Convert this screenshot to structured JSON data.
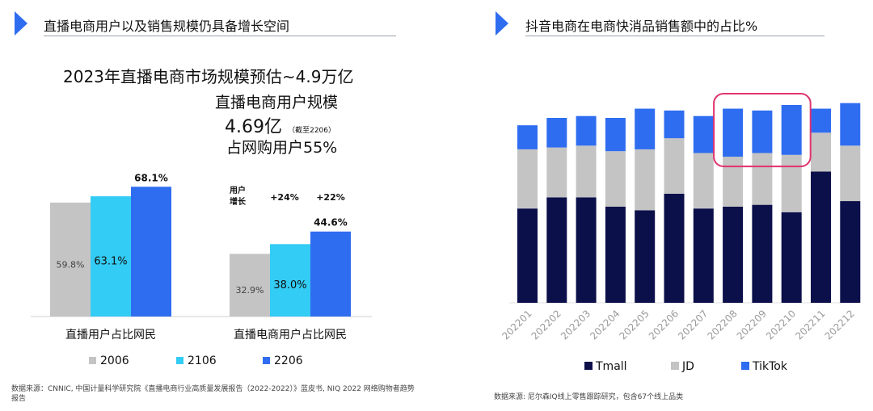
{
  "colors": {
    "accent": "#2f6df0",
    "s2006": "#c4c4c4",
    "s2106": "#33ccf5",
    "s2206": "#2f6df0",
    "tmall": "#0b0f4a",
    "jd": "#c4c4c4",
    "tiktok": "#2f6df0",
    "highlight": "#e0336e"
  },
  "left_panel": {
    "title": "直播电商用户以及销售规模仍具备增长空间",
    "headline": "2023年直播电商市场规模预估~4.9万亿",
    "users_label": "直播电商用户规模",
    "users_value": "4.69亿",
    "users_note": "（截至2206）",
    "online_share": "占网购用户55%",
    "source": "数据来源：CNNIC, 中国计量科学研究院《直播电商行业高质量发展报告（2022-2022）》蓝皮书, NIQ 2022 网络购物者趋势报告"
  },
  "right_panel": {
    "title": "抖音电商在电商快消品销售额中的占比%",
    "source": "数据来源: 尼尔森IQ线上零售跟踪研究，包含67个线上品类"
  },
  "chart_data": [
    {
      "type": "bar",
      "title": "",
      "categories": [
        "直播用户占比网民",
        "直播电商用户占比网民"
      ],
      "series": [
        {
          "name": "2006",
          "values": [
            59.8,
            32.9
          ],
          "labels": [
            "59.8%",
            "32.9%"
          ]
        },
        {
          "name": "2106",
          "values": [
            63.1,
            38.0
          ],
          "labels": [
            "63.1%",
            "38.0%"
          ]
        },
        {
          "name": "2206",
          "values": [
            68.1,
            44.6
          ],
          "labels": [
            "68.1%",
            "44.6%"
          ]
        }
      ],
      "annotations": {
        "growth_label": "用户\n增长",
        "growth_values": [
          "+24%",
          "+22%"
        ]
      },
      "ylim": [
        0,
        100
      ],
      "legend": "bottom"
    },
    {
      "type": "bar",
      "stacked": true,
      "title": "抖音电商在电商快消品销售额中的占比%",
      "categories": [
        "202201",
        "202202",
        "202203",
        "202204",
        "202205",
        "202206",
        "202207",
        "202208",
        "202209",
        "202210",
        "202211",
        "202212"
      ],
      "series": [
        {
          "name": "Tmall",
          "values": [
            51,
            57,
            57,
            52,
            50,
            59,
            51,
            52,
            53,
            49,
            71,
            55
          ]
        },
        {
          "name": "JD",
          "values": [
            32,
            27,
            28,
            30,
            33,
            30,
            30,
            27,
            28,
            31,
            21,
            30
          ]
        },
        {
          "name": "TikTok",
          "values": [
            13,
            16,
            16,
            18,
            22,
            15,
            20,
            26,
            23,
            27,
            13,
            23
          ]
        }
      ],
      "highlight_categories": [
        "202208",
        "202209",
        "202210"
      ],
      "ylim": [
        0,
        110
      ],
      "legend": "bottom"
    }
  ]
}
